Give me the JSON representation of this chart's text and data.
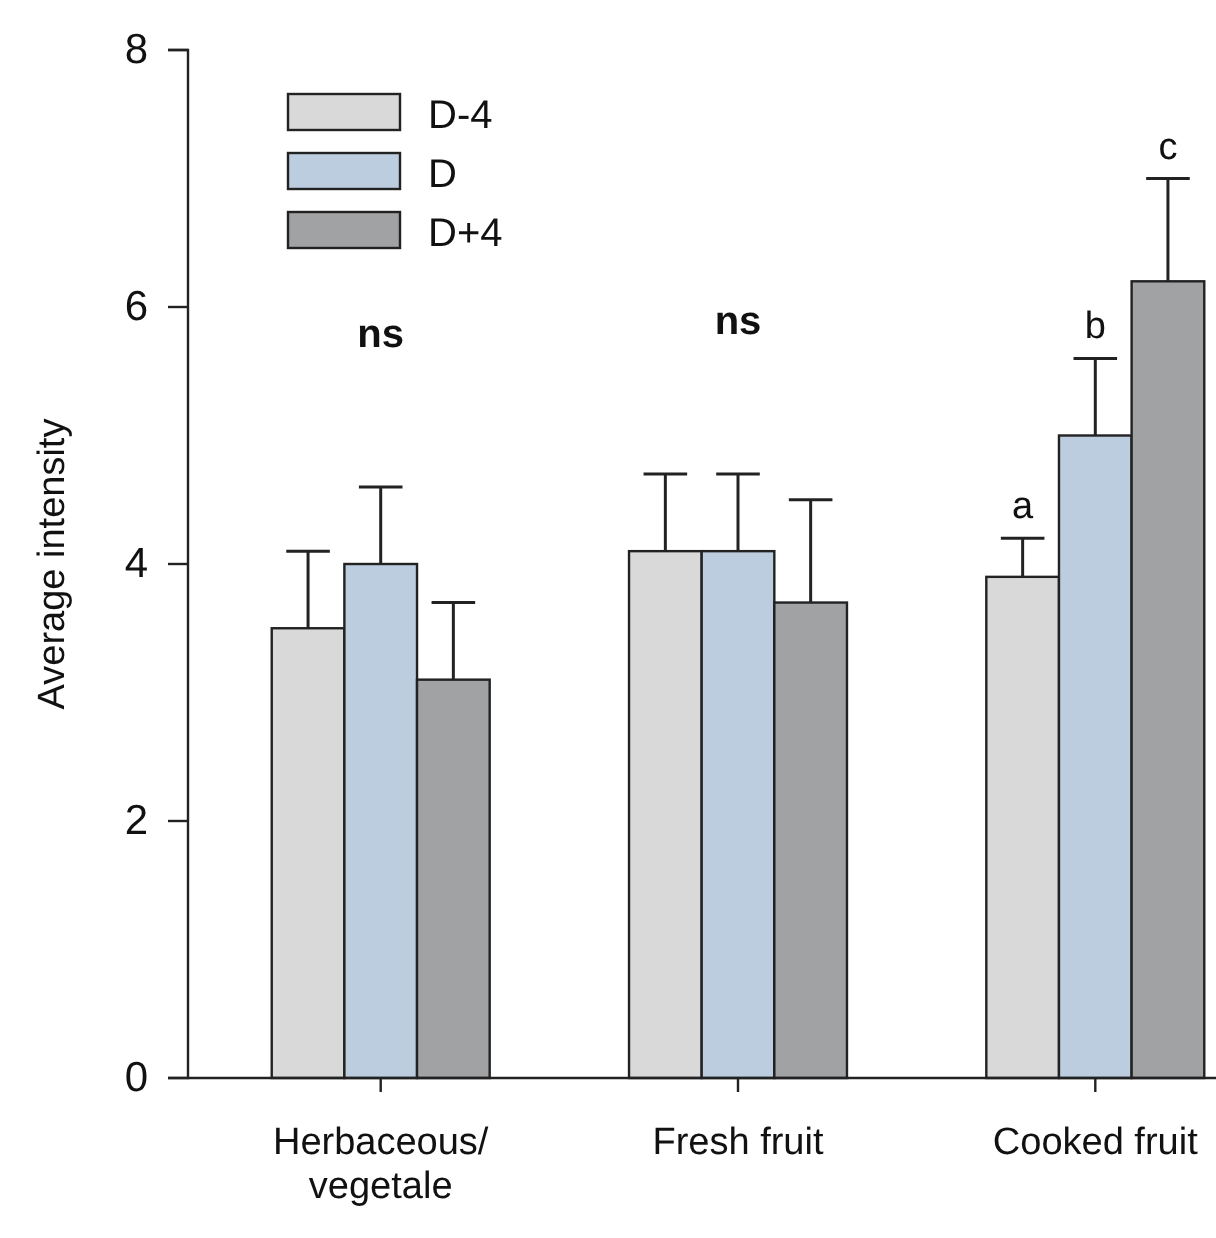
{
  "chart_data": {
    "type": "bar",
    "ylabel": "Average intensity",
    "categories": [
      "Herbaceous/ vegetale",
      "Fresh fruit",
      "Cooked fruit"
    ],
    "series": [
      {
        "name": "D-4",
        "color": "#d9d9d9",
        "values": [
          3.5,
          4.1,
          3.9
        ],
        "errors": [
          [
            3.5,
            4.1
          ],
          [
            4.1,
            4.7
          ],
          [
            3.9,
            4.2
          ]
        ]
      },
      {
        "name": "D",
        "color": "#bccddf",
        "values": [
          4.0,
          4.1,
          5.0
        ],
        "errors": [
          [
            4.0,
            4.6
          ],
          [
            4.1,
            4.7
          ],
          [
            5.0,
            5.6
          ]
        ]
      },
      {
        "name": "D+4",
        "color": "#a0a2a3",
        "values": [
          3.1,
          3.7,
          6.2
        ],
        "errors": [
          [
            3.1,
            3.7
          ],
          [
            3.7,
            4.5
          ],
          [
            6.2,
            7.0
          ]
        ]
      }
    ],
    "ylim": [
      0,
      8
    ],
    "yticks": [
      0,
      2,
      4,
      6,
      8
    ],
    "grid": false,
    "legend": "top left",
    "annotations": [
      "ns",
      "ns",
      "a",
      "b",
      "c"
    ]
  }
}
